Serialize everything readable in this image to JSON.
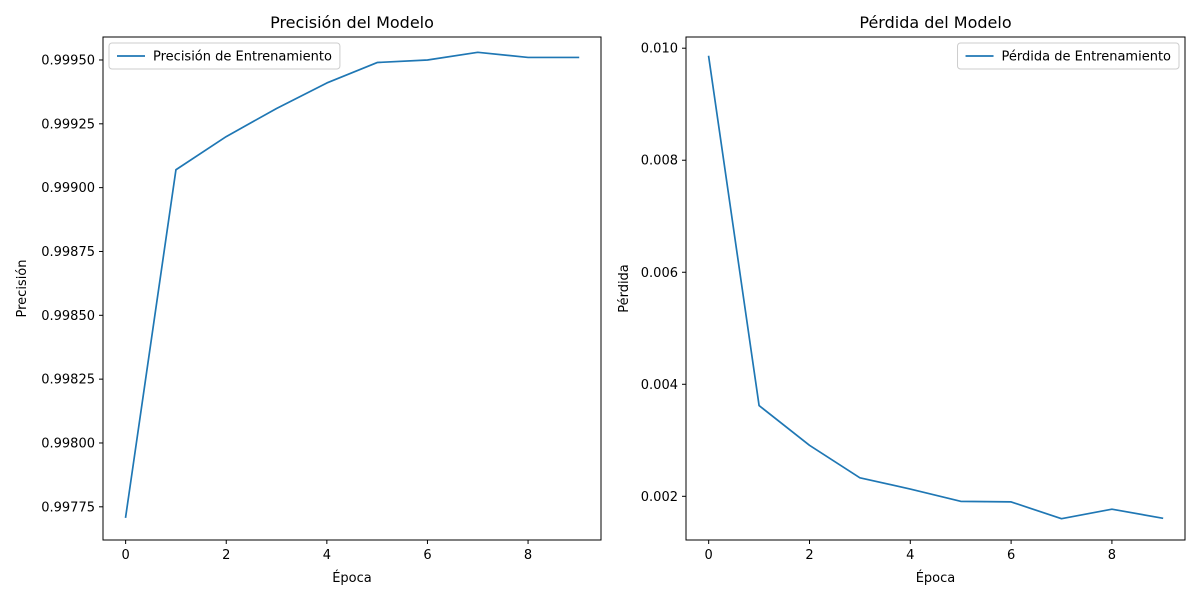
{
  "chart_data": [
    {
      "type": "line",
      "title": "Precisión del Modelo",
      "xlabel": "Época",
      "ylabel": "Precisión",
      "xlim": [
        -0.45,
        9.45
      ],
      "ylim": [
        0.99762,
        0.99959
      ],
      "xticks": [
        0,
        2,
        4,
        6,
        8
      ],
      "xtick_labels": [
        "0",
        "2",
        "4",
        "6",
        "8"
      ],
      "yticks": [
        0.99775,
        0.998,
        0.99825,
        0.9985,
        0.99875,
        0.999,
        0.99925,
        0.9995
      ],
      "ytick_labels": [
        "0.99775",
        "0.99800",
        "0.99825",
        "0.99850",
        "0.99875",
        "0.99900",
        "0.99925",
        "0.99950"
      ],
      "grid": false,
      "legend": "upper-left",
      "series": [
        {
          "name": "Precisión de Entrenamiento",
          "color": "#1f77b4",
          "x": [
            0,
            1,
            2,
            3,
            4,
            5,
            6,
            7,
            8,
            9
          ],
          "values": [
            0.99771,
            0.99907,
            0.9992,
            0.99931,
            0.99941,
            0.99949,
            0.9995,
            0.99953,
            0.99951,
            0.99951
          ]
        }
      ]
    },
    {
      "type": "line",
      "title": "Pérdida del Modelo",
      "xlabel": "Época",
      "ylabel": "Pérdida",
      "xlim": [
        -0.45,
        9.45
      ],
      "ylim": [
        0.00122,
        0.0102
      ],
      "xticks": [
        0,
        2,
        4,
        6,
        8
      ],
      "xtick_labels": [
        "0",
        "2",
        "4",
        "6",
        "8"
      ],
      "yticks": [
        0.002,
        0.004,
        0.006,
        0.008,
        0.01
      ],
      "ytick_labels": [
        "0.002",
        "0.004",
        "0.006",
        "0.008",
        "0.010"
      ],
      "grid": false,
      "legend": "upper-right",
      "series": [
        {
          "name": "Pérdida de Entrenamiento",
          "color": "#1f77b4",
          "x": [
            0,
            1,
            2,
            3,
            4,
            5,
            6,
            7,
            8,
            9
          ],
          "values": [
            0.00985,
            0.00362,
            0.00291,
            0.00233,
            0.00213,
            0.00191,
            0.0019,
            0.0016,
            0.00177,
            0.00161
          ]
        }
      ]
    }
  ]
}
